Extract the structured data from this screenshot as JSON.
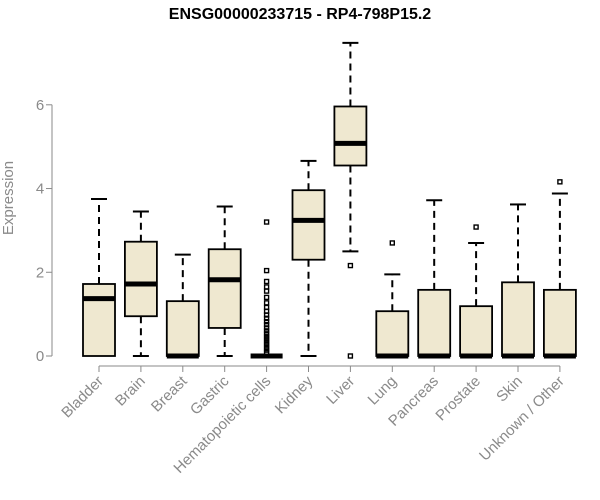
{
  "chart_data": {
    "type": "boxplot",
    "title": "ENSG00000233715 - RP4-798P15.2",
    "xlabel": "",
    "ylabel": "Expression",
    "ylim": [
      0,
      7.5
    ],
    "yticks": [
      0,
      2,
      4,
      6
    ],
    "categories": [
      "Bladder",
      "Brain",
      "Breast",
      "Gastric",
      "Hematopoietic cells",
      "Kidney",
      "Liver",
      "Lung",
      "Pancreas",
      "Prostate",
      "Skin",
      "Unknown / Other"
    ],
    "boxes": [
      {
        "min": 0,
        "q1": 0,
        "median": 1.37,
        "q3": 1.72,
        "max": 3.75,
        "outliers": []
      },
      {
        "min": 0,
        "q1": 0.95,
        "median": 1.72,
        "q3": 2.73,
        "max": 3.45,
        "outliers": []
      },
      {
        "min": 0,
        "q1": 0,
        "median": 0,
        "q3": 1.31,
        "max": 2.42,
        "outliers": []
      },
      {
        "min": 0,
        "q1": 0.67,
        "median": 1.82,
        "q3": 2.55,
        "max": 3.57,
        "outliers": []
      },
      {
        "min": 0,
        "q1": 0,
        "median": 0,
        "q3": 0,
        "max": 0,
        "outliers": [
          0.08,
          0.14,
          0.2,
          0.27,
          0.33,
          0.4,
          0.46,
          0.53,
          0.6,
          0.67,
          0.75,
          0.82,
          0.9,
          0.98,
          1.07,
          1.16,
          1.27,
          1.4,
          1.55,
          1.65,
          1.78,
          2.04,
          3.2
        ]
      },
      {
        "min": 0,
        "q1": 2.3,
        "median": 3.24,
        "q3": 3.96,
        "max": 4.66,
        "outliers": []
      },
      {
        "min": 2.5,
        "q1": 4.55,
        "median": 5.08,
        "q3": 5.96,
        "max": 7.48,
        "outliers": [
          2.16,
          0
        ]
      },
      {
        "min": 0,
        "q1": 0,
        "median": 0,
        "q3": 1.07,
        "max": 1.95,
        "outliers": [
          2.7
        ]
      },
      {
        "min": 0,
        "q1": 0,
        "median": 0,
        "q3": 1.58,
        "max": 3.72,
        "outliers": []
      },
      {
        "min": 0,
        "q1": 0,
        "median": 0,
        "q3": 1.19,
        "max": 2.7,
        "outliers": [
          3.08
        ]
      },
      {
        "min": 0,
        "q1": 0,
        "median": 0,
        "q3": 1.76,
        "max": 3.62,
        "outliers": []
      },
      {
        "min": 0,
        "q1": 0,
        "median": 0,
        "q3": 1.58,
        "max": 3.88,
        "outliers": [
          4.16
        ]
      }
    ],
    "colors": {
      "box_fill": "#efe8d0",
      "stroke": "#000000",
      "axis": "#8a8a8a"
    }
  }
}
